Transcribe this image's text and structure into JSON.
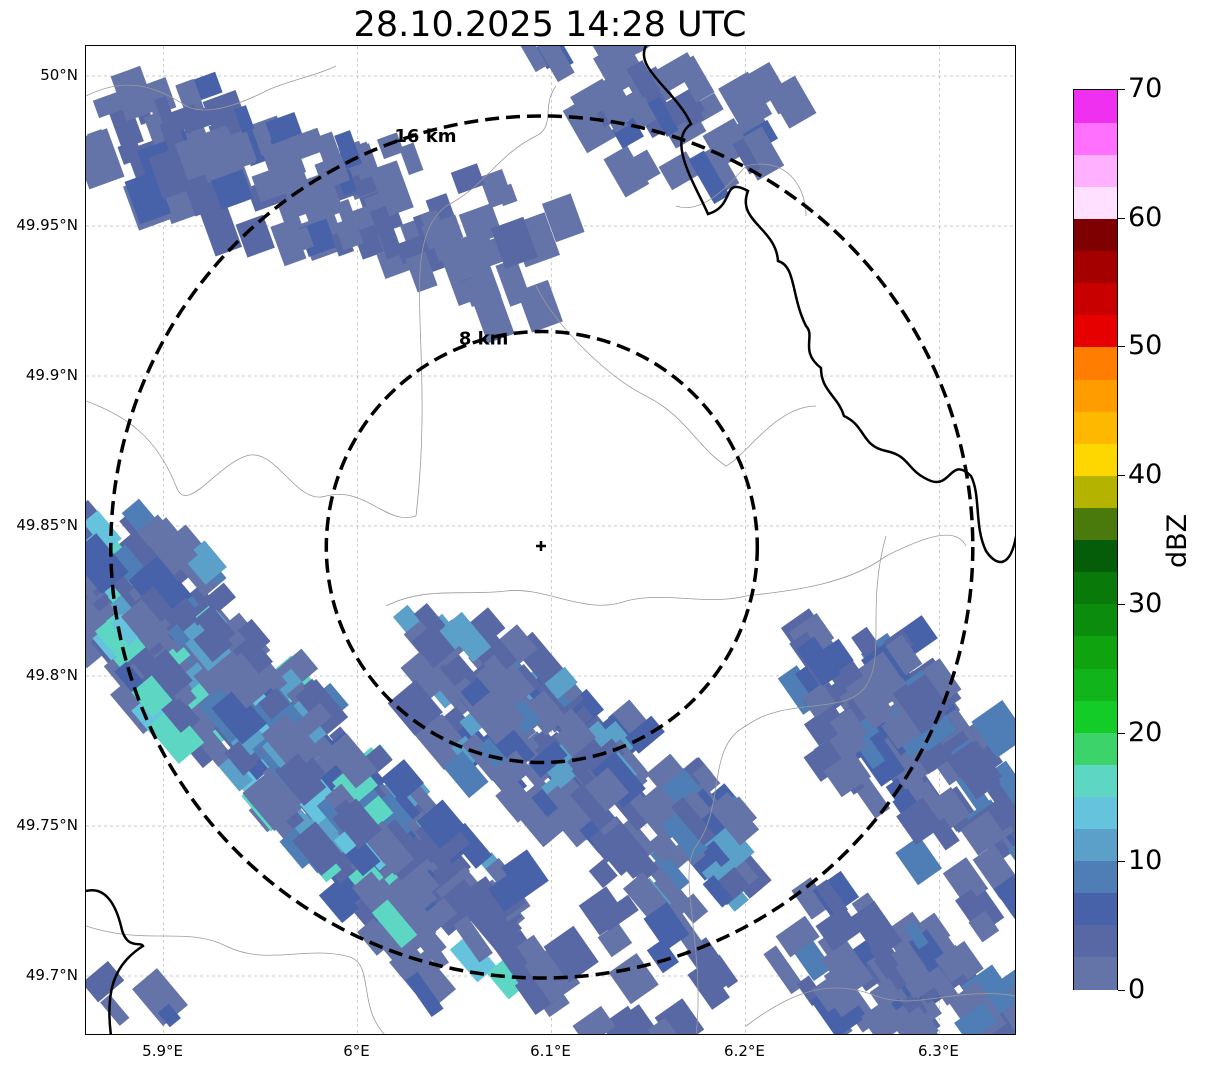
{
  "title": "28.10.2025 14:28 UTC",
  "map": {
    "lon_range": [
      5.86,
      6.34
    ],
    "lat_range": [
      49.68,
      50.01
    ],
    "lat_ticks": [
      {
        "value": 50.0,
        "label": "50°N"
      },
      {
        "value": 49.95,
        "label": "49.95°N"
      },
      {
        "value": 49.9,
        "label": "49.9°N"
      },
      {
        "value": 49.85,
        "label": "49.85°N"
      },
      {
        "value": 49.8,
        "label": "49.8°N"
      },
      {
        "value": 49.75,
        "label": "49.75°N"
      },
      {
        "value": 49.7,
        "label": "49.7°N"
      }
    ],
    "lon_ticks": [
      {
        "value": 5.9,
        "label": "5.9°E"
      },
      {
        "value": 6.0,
        "label": "6°E"
      },
      {
        "value": 6.1,
        "label": "6.1°E"
      },
      {
        "value": 6.2,
        "label": "6.2°E"
      },
      {
        "value": 6.3,
        "label": "6.3°E"
      }
    ],
    "center": {
      "lon": 6.095,
      "lat": 49.843
    },
    "range_rings": [
      {
        "radius_km": 8,
        "label": "8 km"
      },
      {
        "radius_km": 16,
        "label": "16 km"
      }
    ],
    "grid": true
  },
  "colorbar": {
    "unit": "dBZ",
    "min": 0,
    "max": 70,
    "tick_labels": [
      "0",
      "10",
      "20",
      "30",
      "40",
      "50",
      "60",
      "70"
    ],
    "tick_values": [
      0,
      10,
      20,
      30,
      40,
      50,
      60,
      70
    ],
    "colors": [
      "#6574a8",
      "#5868a4",
      "#4762a8",
      "#4f7db5",
      "#5aa0c8",
      "#66c3dd",
      "#5dd6c4",
      "#3dd36b",
      "#14cc28",
      "#12b41c",
      "#0fa40f",
      "#0c8c0c",
      "#097a09",
      "#055d0a",
      "#4a7a0c",
      "#b3b300",
      "#ffd700",
      "#ffb800",
      "#ff9c00",
      "#ff7d00",
      "#e60000",
      "#c80000",
      "#a50000",
      "#7e0000",
      "#ffe0ff",
      "#ffb0ff",
      "#ff70ff",
      "#f030f0"
    ]
  },
  "colors": {
    "border": "#000000",
    "admin_lines": "#9a9a9a",
    "grid": "#b8b8b8"
  }
}
